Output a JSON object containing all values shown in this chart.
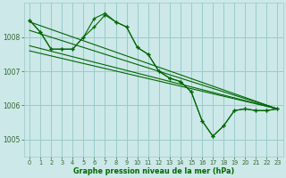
{
  "bg_color": "#cce8e8",
  "grid_color": "#99cccc",
  "line_color": "#006600",
  "xlabel": "Graphe pression niveau de la mer (hPa)",
  "xlabel_color": "#006600",
  "tick_color": "#336633",
  "ylim": [
    1004.5,
    1009.0
  ],
  "yticks": [
    1005,
    1006,
    1007,
    1008
  ],
  "xlim": [
    -0.5,
    23.5
  ],
  "xticks": [
    0,
    1,
    2,
    3,
    4,
    5,
    6,
    7,
    8,
    9,
    10,
    11,
    12,
    13,
    14,
    15,
    16,
    17,
    18,
    19,
    20,
    21,
    22,
    23
  ],
  "line1_x": [
    0,
    1,
    2,
    3,
    4,
    5,
    6,
    7,
    8,
    9,
    10,
    11,
    12,
    13,
    14,
    15,
    16,
    17,
    18,
    19,
    20,
    21,
    22,
    23
  ],
  "line1_y": [
    1008.5,
    1008.15,
    1007.65,
    1007.65,
    1007.65,
    1008.0,
    1008.55,
    1008.7,
    1008.45,
    1008.3,
    1007.7,
    1007.5,
    1007.0,
    1006.8,
    1006.7,
    1006.4,
    1005.55,
    1005.1,
    1005.4,
    1005.85,
    1005.9,
    1005.85,
    1005.85,
    1005.9
  ],
  "line2_x": [
    0,
    1,
    2,
    3,
    4,
    5,
    6,
    7,
    8,
    9,
    10,
    11,
    12,
    13,
    14,
    15,
    16,
    17,
    18,
    19,
    20,
    21,
    22,
    23
  ],
  "line2_y": [
    1008.5,
    1008.15,
    1007.65,
    1007.65,
    1007.65,
    1008.0,
    1008.3,
    1008.65,
    1008.45,
    1008.3,
    1007.7,
    1007.5,
    1007.0,
    1006.8,
    1006.7,
    1006.4,
    1005.55,
    1005.1,
    1005.4,
    1005.85,
    1005.9,
    1005.85,
    1005.85,
    1005.9
  ],
  "line3_x": [
    0,
    23
  ],
  "line3_y": [
    1008.45,
    1005.9
  ],
  "line4_x": [
    0,
    23
  ],
  "line4_y": [
    1008.2,
    1005.9
  ],
  "line5_x": [
    0,
    23
  ],
  "line5_y": [
    1007.75,
    1005.9
  ],
  "line6_x": [
    0,
    23
  ],
  "line6_y": [
    1007.6,
    1005.9
  ]
}
